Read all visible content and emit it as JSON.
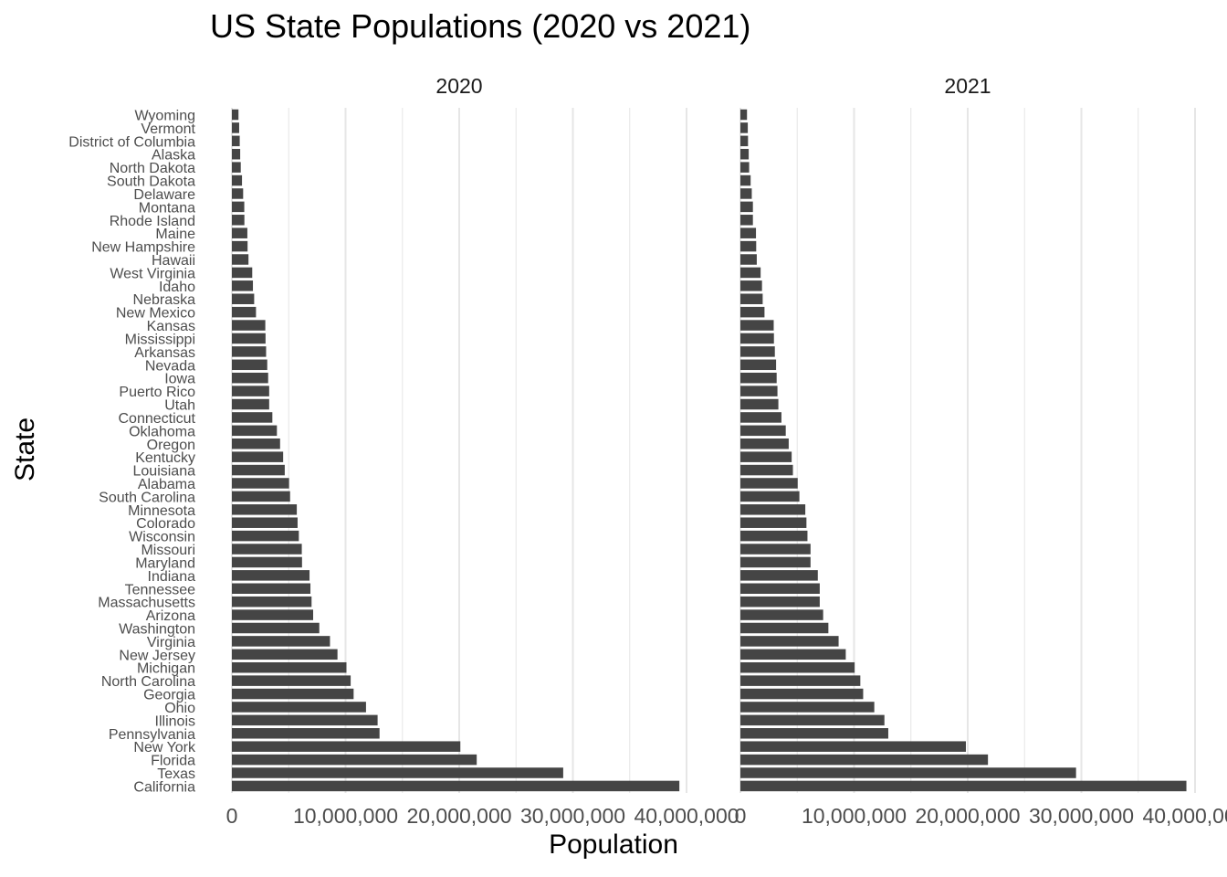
{
  "title": "US State Populations (2020 vs 2021)",
  "xlabel": "Population",
  "ylabel": "State",
  "bar_color": "#454545",
  "grid_color": "#e6e6e6",
  "chart_data": {
    "type": "bar",
    "orientation": "horizontal",
    "title": "US State Populations (2020 vs 2021)",
    "xlabel": "Population",
    "ylabel": "State",
    "xlim": [
      0,
      40000000
    ],
    "x_ticks": [
      "0",
      "10,000,000",
      "20,000,000",
      "30,000,000",
      "40,000,000"
    ],
    "x_tick_values": [
      0,
      10000000,
      20000000,
      30000000,
      40000000
    ],
    "grid": true,
    "facets": [
      "2020",
      "2021"
    ],
    "categories": [
      "Wyoming",
      "Vermont",
      "District of Columbia",
      "Alaska",
      "North Dakota",
      "South Dakota",
      "Delaware",
      "Montana",
      "Rhode Island",
      "Maine",
      "New Hampshire",
      "Hawaii",
      "West Virginia",
      "Idaho",
      "Nebraska",
      "New Mexico",
      "Kansas",
      "Mississippi",
      "Arkansas",
      "Nevada",
      "Iowa",
      "Puerto Rico",
      "Utah",
      "Connecticut",
      "Oklahoma",
      "Oregon",
      "Kentucky",
      "Louisiana",
      "Alabama",
      "South Carolina",
      "Minnesota",
      "Colorado",
      "Wisconsin",
      "Missouri",
      "Maryland",
      "Indiana",
      "Tennessee",
      "Massachusetts",
      "Arizona",
      "Washington",
      "Virginia",
      "New Jersey",
      "Michigan",
      "North Carolina",
      "Georgia",
      "Ohio",
      "Illinois",
      "Pennsylvania",
      "New York",
      "Florida",
      "Texas",
      "California"
    ],
    "series": [
      {
        "name": "2020",
        "values": [
          580000,
          640000,
          690000,
          730000,
          780000,
          890000,
          990000,
          1090000,
          1100000,
          1360000,
          1380000,
          1460000,
          1790000,
          1850000,
          1960000,
          2120000,
          2940000,
          2960000,
          3010000,
          3110000,
          3190000,
          3280000,
          3280000,
          3560000,
          3960000,
          4240000,
          4510000,
          4650000,
          5030000,
          5120000,
          5710000,
          5780000,
          5890000,
          6150000,
          6170000,
          6830000,
          6910000,
          7010000,
          7150000,
          7690000,
          8630000,
          9290000,
          10080000,
          10450000,
          10710000,
          11800000,
          12820000,
          12990000,
          20100000,
          21540000,
          29150000,
          39370000
        ]
      },
      {
        "name": "2021",
        "values": [
          580000,
          650000,
          670000,
          730000,
          770000,
          900000,
          1000000,
          1100000,
          1100000,
          1370000,
          1390000,
          1440000,
          1780000,
          1900000,
          1960000,
          2120000,
          2930000,
          2950000,
          3030000,
          3140000,
          3190000,
          3260000,
          3340000,
          3610000,
          3990000,
          4250000,
          4510000,
          4620000,
          5040000,
          5190000,
          5710000,
          5810000,
          5900000,
          6170000,
          6170000,
          6810000,
          6980000,
          6980000,
          7280000,
          7740000,
          8640000,
          9270000,
          10050000,
          10550000,
          10800000,
          11780000,
          12670000,
          13010000,
          19840000,
          21780000,
          29530000,
          39240000
        ]
      }
    ]
  }
}
